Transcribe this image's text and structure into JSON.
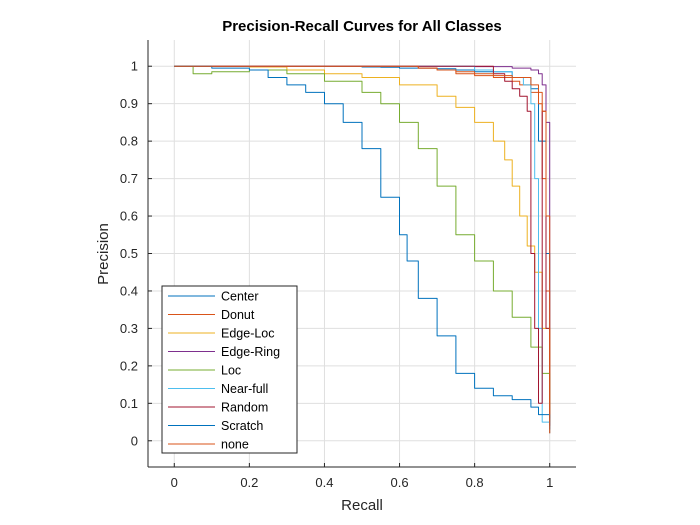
{
  "chart_data": {
    "type": "line",
    "title": "Precision-Recall Curves for All Classes",
    "xlabel": "Recall",
    "ylabel": "Precision",
    "xlim": [
      -0.07,
      1.07
    ],
    "ylim": [
      -0.07,
      1.07
    ],
    "xticks": [
      0,
      0.2,
      0.4,
      0.6,
      0.8,
      1
    ],
    "yticks": [
      0,
      0.1,
      0.2,
      0.3,
      0.4,
      0.5,
      0.6,
      0.7,
      0.8,
      0.9,
      1
    ],
    "xtick_labels": [
      "0",
      "0.2",
      "0.4",
      "0.6",
      "0.8",
      "1"
    ],
    "ytick_labels": [
      "0",
      "0.1",
      "0.2",
      "0.3",
      "0.4",
      "0.5",
      "0.6",
      "0.7",
      "0.8",
      "0.9",
      "1"
    ],
    "grid": true,
    "legend_position": "bottom-left",
    "series": [
      {
        "name": "Center",
        "color": "#0072BD",
        "x": [
          0,
          0.22,
          0.3,
          0.4,
          0.45,
          0.5,
          0.55,
          0.6,
          0.7,
          0.75,
          0.8,
          0.9,
          0.95,
          0.97,
          0.99,
          1
        ],
        "y": [
          1,
          1,
          1,
          1,
          1,
          0.998,
          0.997,
          0.995,
          0.993,
          0.99,
          0.985,
          0.97,
          0.94,
          0.8,
          0.5,
          0.06
        ]
      },
      {
        "name": "Donut",
        "color": "#D95319",
        "x": [
          0,
          0.2,
          0.4,
          0.6,
          0.65,
          0.7,
          0.75,
          0.8,
          0.85,
          0.9,
          0.92,
          0.95,
          0.97,
          0.98,
          0.99,
          1
        ],
        "y": [
          1,
          1,
          1,
          1,
          0.995,
          0.99,
          0.98,
          0.975,
          0.97,
          0.96,
          0.95,
          0.93,
          0.9,
          0.7,
          0.4,
          0.02
        ]
      },
      {
        "name": "Edge-Loc",
        "color": "#EDB120",
        "x": [
          0,
          0.2,
          0.3,
          0.4,
          0.5,
          0.6,
          0.7,
          0.75,
          0.8,
          0.85,
          0.88,
          0.9,
          0.92,
          0.94,
          0.96,
          0.98,
          1
        ],
        "y": [
          1,
          0.998,
          0.99,
          0.98,
          0.97,
          0.95,
          0.92,
          0.89,
          0.85,
          0.8,
          0.75,
          0.68,
          0.6,
          0.52,
          0.45,
          0.3,
          0.08
        ]
      },
      {
        "name": "Edge-Ring",
        "color": "#7E2F8E",
        "x": [
          0,
          0.2,
          0.4,
          0.6,
          0.8,
          0.9,
          0.95,
          0.97,
          0.98,
          0.99,
          1
        ],
        "y": [
          1,
          1,
          1,
          1,
          0.999,
          0.995,
          0.99,
          0.98,
          0.95,
          0.85,
          0.3
        ]
      },
      {
        "name": "Loc",
        "color": "#77AC30",
        "x": [
          0,
          0.05,
          0.1,
          0.2,
          0.3,
          0.4,
          0.5,
          0.55,
          0.6,
          0.65,
          0.7,
          0.75,
          0.8,
          0.85,
          0.9,
          0.95,
          0.98,
          1
        ],
        "y": [
          1,
          0.98,
          0.985,
          0.99,
          0.98,
          0.96,
          0.93,
          0.9,
          0.85,
          0.78,
          0.68,
          0.55,
          0.48,
          0.4,
          0.33,
          0.25,
          0.18,
          0.05
        ]
      },
      {
        "name": "Near-full",
        "color": "#4DBEEE",
        "x": [
          0,
          0.2,
          0.4,
          0.6,
          0.8,
          0.85,
          0.9,
          0.93,
          0.95,
          0.96,
          0.97,
          0.98,
          1
        ],
        "y": [
          1,
          1,
          1,
          1,
          0.99,
          0.985,
          0.97,
          0.95,
          0.9,
          0.7,
          0.3,
          0.05,
          0.02
        ]
      },
      {
        "name": "Random",
        "color": "#A2142F",
        "x": [
          0,
          0.2,
          0.4,
          0.6,
          0.8,
          0.85,
          0.88,
          0.9,
          0.92,
          0.94,
          0.95,
          0.96,
          0.97,
          0.98,
          0.99,
          1
        ],
        "y": [
          1,
          1,
          1,
          1,
          1,
          0.98,
          0.96,
          0.94,
          0.92,
          0.88,
          0.5,
          0.3,
          0.1,
          0.88,
          0.3,
          0.04
        ]
      },
      {
        "name": "Scratch",
        "color": "#0072BD",
        "x": [
          0,
          0.1,
          0.2,
          0.25,
          0.3,
          0.35,
          0.4,
          0.45,
          0.5,
          0.55,
          0.6,
          0.62,
          0.65,
          0.7,
          0.75,
          0.8,
          0.85,
          0.9,
          0.95,
          0.97,
          1
        ],
        "y": [
          1,
          0.995,
          0.99,
          0.97,
          0.95,
          0.93,
          0.9,
          0.85,
          0.78,
          0.65,
          0.55,
          0.48,
          0.38,
          0.28,
          0.18,
          0.14,
          0.12,
          0.11,
          0.09,
          0.07,
          0.03
        ]
      },
      {
        "name": "none",
        "color": "#D95319",
        "x": [
          0,
          0.2,
          0.4,
          0.6,
          0.65,
          0.7,
          0.75,
          0.8,
          0.85,
          0.9,
          0.95,
          0.97,
          0.98,
          0.99,
          1
        ],
        "y": [
          1,
          1,
          1,
          1,
          0.995,
          0.99,
          0.985,
          0.98,
          0.975,
          0.97,
          0.95,
          0.93,
          0.88,
          0.6,
          0.02
        ]
      }
    ]
  }
}
